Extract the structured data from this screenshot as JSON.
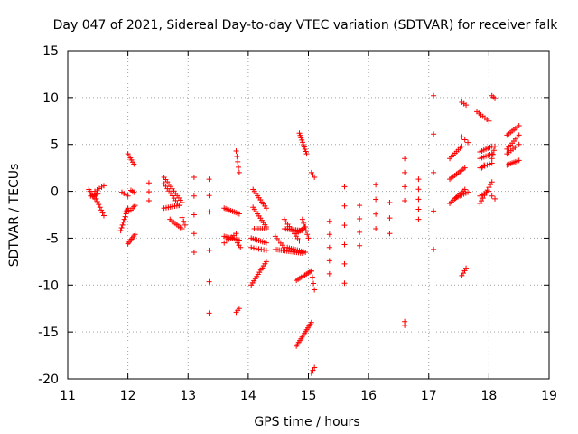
{
  "chart_data": {
    "type": "scatter",
    "title": "Day 047 of 2021, Sidereal Day-to-day VTEC variation (SDTVAR) for receiver falk",
    "xlabel": "GPS time / hours",
    "ylabel": "SDTVAR / TECUs",
    "xlim": [
      11,
      19
    ],
    "ylim": [
      -20,
      15
    ],
    "xticks": [
      11,
      12,
      13,
      14,
      15,
      16,
      17,
      18,
      19
    ],
    "xtick_labels": [
      "11",
      "12",
      "13",
      "14",
      "15",
      "16",
      "17",
      "18",
      "19"
    ],
    "yticks": [
      -20,
      -15,
      -10,
      -5,
      0,
      5,
      10,
      15
    ],
    "ytick_labels": [
      "-20",
      "-15",
      "-10",
      "-5",
      "0",
      "5",
      "10",
      "15"
    ],
    "grid": true,
    "marker": "+",
    "color": "#ff0000",
    "segments": [
      {
        "x0": 11.35,
        "y0": 0.2,
        "x1": 11.45,
        "y1": -0.8,
        "n": 6
      },
      {
        "x0": 11.38,
        "y0": -0.5,
        "x1": 11.5,
        "y1": -0.3,
        "n": 5
      },
      {
        "x0": 11.45,
        "y0": -0.5,
        "x1": 11.6,
        "y1": -2.6,
        "n": 8
      },
      {
        "x0": 11.45,
        "y0": 0.0,
        "x1": 11.6,
        "y1": 0.6,
        "n": 5
      },
      {
        "x0": 11.9,
        "y0": -0.1,
        "x1": 12.0,
        "y1": -0.5,
        "n": 4
      },
      {
        "x0": 11.88,
        "y0": -4.2,
        "x1": 12.0,
        "y1": -1.8,
        "n": 9
      },
      {
        "x0": 11.95,
        "y0": -2.2,
        "x1": 12.05,
        "y1": -2.0,
        "n": 4
      },
      {
        "x0": 12.0,
        "y0": 4.0,
        "x1": 12.1,
        "y1": 2.9,
        "n": 6
      },
      {
        "x0": 12.0,
        "y0": -5.6,
        "x1": 12.12,
        "y1": -4.6,
        "n": 7
      },
      {
        "x0": 12.05,
        "y0": 0.1,
        "x1": 12.1,
        "y1": -0.1,
        "n": 3
      },
      {
        "x0": 12.08,
        "y0": -1.8,
        "x1": 12.12,
        "y1": -1.5,
        "n": 3
      },
      {
        "x0": 12.35,
        "y0": 0.9,
        "x1": 12.35,
        "y1": -1.0,
        "n": 3
      },
      {
        "x0": 12.6,
        "y0": 1.5,
        "x1": 12.9,
        "y1": -1.2,
        "n": 12
      },
      {
        "x0": 12.6,
        "y0": 0.8,
        "x1": 12.85,
        "y1": -1.5,
        "n": 10
      },
      {
        "x0": 12.6,
        "y0": -1.8,
        "x1": 12.85,
        "y1": -1.5,
        "n": 8
      },
      {
        "x0": 12.7,
        "y0": -3.0,
        "x1": 12.9,
        "y1": -4.0,
        "n": 8
      },
      {
        "x0": 12.9,
        "y0": -2.8,
        "x1": 12.95,
        "y1": -3.6,
        "n": 3
      },
      {
        "x0": 13.1,
        "y0": 1.5,
        "x1": 13.1,
        "y1": -6.5,
        "n": 5
      },
      {
        "x0": 13.35,
        "y0": 1.3,
        "x1": 13.35,
        "y1": -2.2,
        "n": 3
      },
      {
        "x0": 13.35,
        "y0": -6.3,
        "x1": 13.35,
        "y1": -13.0,
        "n": 3
      },
      {
        "x0": 13.6,
        "y0": -1.8,
        "x1": 13.85,
        "y1": -2.4,
        "n": 10
      },
      {
        "x0": 13.6,
        "y0": -4.8,
        "x1": 13.85,
        "y1": -5.2,
        "n": 10
      },
      {
        "x0": 13.6,
        "y0": -5.5,
        "x1": 13.8,
        "y1": -4.5,
        "n": 6
      },
      {
        "x0": 13.8,
        "y0": 4.3,
        "x1": 13.85,
        "y1": 2.0,
        "n": 5
      },
      {
        "x0": 13.8,
        "y0": -12.9,
        "x1": 13.85,
        "y1": -12.5,
        "n": 3
      },
      {
        "x0": 13.82,
        "y0": -5.5,
        "x1": 13.87,
        "y1": -6.0,
        "n": 3
      },
      {
        "x0": 14.08,
        "y0": 0.2,
        "x1": 14.3,
        "y1": -1.8,
        "n": 10
      },
      {
        "x0": 14.08,
        "y0": -1.7,
        "x1": 14.3,
        "y1": -3.8,
        "n": 10
      },
      {
        "x0": 14.1,
        "y0": -4.0,
        "x1": 14.3,
        "y1": -4.0,
        "n": 7
      },
      {
        "x0": 14.05,
        "y0": -5.0,
        "x1": 14.3,
        "y1": -5.5,
        "n": 9
      },
      {
        "x0": 14.05,
        "y0": -6.0,
        "x1": 14.3,
        "y1": -6.3,
        "n": 7
      },
      {
        "x0": 14.05,
        "y0": -10.0,
        "x1": 14.3,
        "y1": -7.5,
        "n": 12
      },
      {
        "x0": 14.45,
        "y0": -4.8,
        "x1": 14.6,
        "y1": -6.0,
        "n": 6
      },
      {
        "x0": 14.45,
        "y0": -6.2,
        "x1": 14.9,
        "y1": -6.6,
        "n": 15
      },
      {
        "x0": 14.65,
        "y0": -6.0,
        "x1": 14.95,
        "y1": -6.5,
        "n": 10
      },
      {
        "x0": 14.6,
        "y0": -4.0,
        "x1": 14.9,
        "y1": -4.2,
        "n": 12
      },
      {
        "x0": 14.6,
        "y0": -3.0,
        "x1": 14.85,
        "y1": -5.3,
        "n": 10
      },
      {
        "x0": 14.8,
        "y0": -4.5,
        "x1": 14.95,
        "y1": -3.8,
        "n": 6
      },
      {
        "x0": 14.85,
        "y0": 6.2,
        "x1": 14.97,
        "y1": 4.0,
        "n": 10
      },
      {
        "x0": 14.9,
        "y0": -3.0,
        "x1": 15.0,
        "y1": -5.0,
        "n": 6
      },
      {
        "x0": 14.8,
        "y0": -16.5,
        "x1": 15.05,
        "y1": -14.0,
        "n": 14
      },
      {
        "x0": 14.8,
        "y0": -9.5,
        "x1": 15.05,
        "y1": -8.5,
        "n": 10
      },
      {
        "x0": 15.05,
        "y0": -8.5,
        "x1": 15.1,
        "y1": -10.5,
        "n": 4
      },
      {
        "x0": 15.05,
        "y0": 2.0,
        "x1": 15.1,
        "y1": 1.5,
        "n": 3
      },
      {
        "x0": 15.05,
        "y0": -19.4,
        "x1": 15.1,
        "y1": -18.8,
        "n": 3
      },
      {
        "x0": 15.35,
        "y0": -3.2,
        "x1": 15.35,
        "y1": -8.8,
        "n": 5
      },
      {
        "x0": 15.6,
        "y0": 0.5,
        "x1": 15.6,
        "y1": -9.8,
        "n": 6
      },
      {
        "x0": 15.85,
        "y0": -1.5,
        "x1": 15.85,
        "y1": -5.8,
        "n": 4
      },
      {
        "x0": 16.12,
        "y0": 0.7,
        "x1": 16.12,
        "y1": -4.0,
        "n": 4
      },
      {
        "x0": 16.35,
        "y0": -1.2,
        "x1": 16.35,
        "y1": -4.5,
        "n": 3
      },
      {
        "x0": 16.6,
        "y0": 3.5,
        "x1": 16.6,
        "y1": -1.0,
        "n": 4
      },
      {
        "x0": 16.6,
        "y0": -13.9,
        "x1": 16.6,
        "y1": -14.3,
        "n": 2
      },
      {
        "x0": 16.83,
        "y0": 1.3,
        "x1": 16.83,
        "y1": -3.0,
        "n": 5
      },
      {
        "x0": 17.08,
        "y0": 10.2,
        "x1": 17.08,
        "y1": -6.2,
        "n": 5
      },
      {
        "x0": 17.35,
        "y0": 1.3,
        "x1": 17.6,
        "y1": 2.5,
        "n": 10
      },
      {
        "x0": 17.35,
        "y0": -1.3,
        "x1": 17.6,
        "y1": 0.2,
        "n": 10
      },
      {
        "x0": 17.35,
        "y0": 3.5,
        "x1": 17.55,
        "y1": 4.8,
        "n": 8
      },
      {
        "x0": 17.45,
        "y0": -0.7,
        "x1": 17.65,
        "y1": -0.1,
        "n": 7
      },
      {
        "x0": 17.55,
        "y0": 9.5,
        "x1": 17.62,
        "y1": 9.2,
        "n": 3
      },
      {
        "x0": 17.55,
        "y0": 5.8,
        "x1": 17.65,
        "y1": 5.2,
        "n": 3
      },
      {
        "x0": 17.55,
        "y0": -9.0,
        "x1": 17.62,
        "y1": -8.2,
        "n": 4
      },
      {
        "x0": 17.8,
        "y0": 8.5,
        "x1": 18.0,
        "y1": 7.5,
        "n": 7
      },
      {
        "x0": 17.85,
        "y0": 4.2,
        "x1": 18.05,
        "y1": 4.8,
        "n": 7
      },
      {
        "x0": 17.85,
        "y0": 3.5,
        "x1": 18.05,
        "y1": 4.0,
        "n": 7
      },
      {
        "x0": 17.85,
        "y0": 2.5,
        "x1": 18.05,
        "y1": 3.0,
        "n": 6
      },
      {
        "x0": 17.85,
        "y0": -1.3,
        "x1": 18.05,
        "y1": 1.0,
        "n": 9
      },
      {
        "x0": 17.85,
        "y0": -0.5,
        "x1": 18.0,
        "y1": 0.0,
        "n": 5
      },
      {
        "x0": 17.88,
        "y0": 2.5,
        "x1": 17.92,
        "y1": 2.8,
        "n": 2
      },
      {
        "x0": 18.05,
        "y0": 10.2,
        "x1": 18.1,
        "y1": 9.9,
        "n": 3
      },
      {
        "x0": 18.05,
        "y0": 3.5,
        "x1": 18.1,
        "y1": 4.8,
        "n": 4
      },
      {
        "x0": 18.05,
        "y0": -0.5,
        "x1": 18.1,
        "y1": -0.8,
        "n": 2
      },
      {
        "x0": 18.3,
        "y0": 6.0,
        "x1": 18.5,
        "y1": 7.0,
        "n": 8
      },
      {
        "x0": 18.3,
        "y0": 4.5,
        "x1": 18.5,
        "y1": 6.0,
        "n": 8
      },
      {
        "x0": 18.3,
        "y0": 2.8,
        "x1": 18.5,
        "y1": 3.3,
        "n": 8
      },
      {
        "x0": 18.3,
        "y0": 4.0,
        "x1": 18.5,
        "y1": 5.0,
        "n": 7
      }
    ]
  }
}
